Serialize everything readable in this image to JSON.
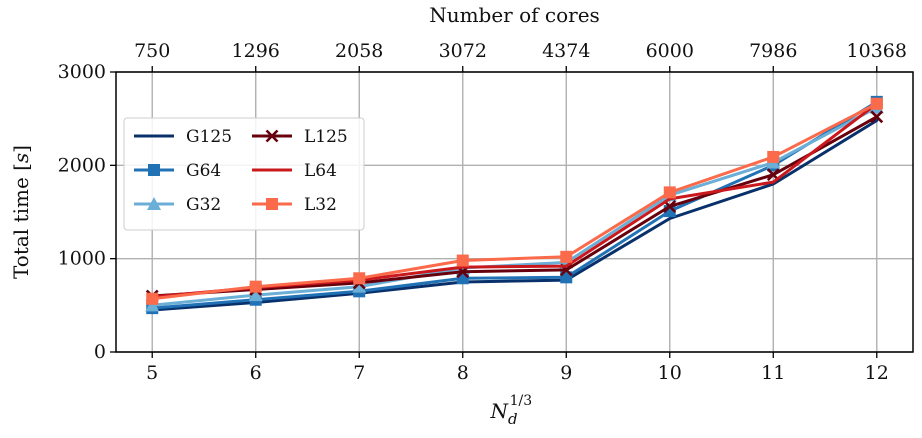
{
  "chart_data": {
    "type": "line",
    "title": "",
    "top_axis_title": "Number of cores",
    "top_ticks": [
      "750",
      "1296",
      "2058",
      "3072",
      "4374",
      "6000",
      "7986",
      "10368"
    ],
    "xlabel_base": "N",
    "xlabel_sub": "d",
    "xlabel_sup": "1/3",
    "ylabel_text": "Total time [",
    "ylabel_unit": "s",
    "ylabel_close": "]",
    "x": [
      5,
      6,
      7,
      8,
      9,
      10,
      11,
      12
    ],
    "x_ticks": [
      "5",
      "6",
      "7",
      "8",
      "9",
      "10",
      "11",
      "12"
    ],
    "xlim": [
      4.65,
      12.35
    ],
    "ylim": [
      0,
      3000
    ],
    "y_ticks": [
      0,
      1000,
      2000,
      3000
    ],
    "y_tick_labels": [
      "0",
      "1000",
      "2000",
      "3000"
    ],
    "grid": true,
    "legend_position": "upper left",
    "series": [
      {
        "name": "G125",
        "color": "#08306b",
        "marker": "none",
        "values": [
          450,
          530,
          630,
          750,
          770,
          1430,
          1800,
          2480
        ]
      },
      {
        "name": "G64",
        "color": "#2171b5",
        "marker": "square",
        "values": [
          470,
          560,
          650,
          790,
          800,
          1510,
          2000,
          2680
        ]
      },
      {
        "name": "G32",
        "color": "#6baed6",
        "marker": "triangle",
        "values": [
          500,
          610,
          700,
          900,
          960,
          1680,
          2030,
          2620
        ]
      },
      {
        "name": "L125",
        "color": "#67000d",
        "marker": "x",
        "values": [
          600,
          670,
          740,
          860,
          880,
          1560,
          1900,
          2520
        ]
      },
      {
        "name": "L64",
        "color": "#cb181d",
        "marker": "none",
        "values": [
          590,
          690,
          770,
          910,
          920,
          1640,
          1820,
          2660
        ]
      },
      {
        "name": "L32",
        "color": "#fb6a4a",
        "marker": "square",
        "values": [
          570,
          700,
          790,
          980,
          1020,
          1710,
          2090,
          2660
        ]
      }
    ]
  }
}
